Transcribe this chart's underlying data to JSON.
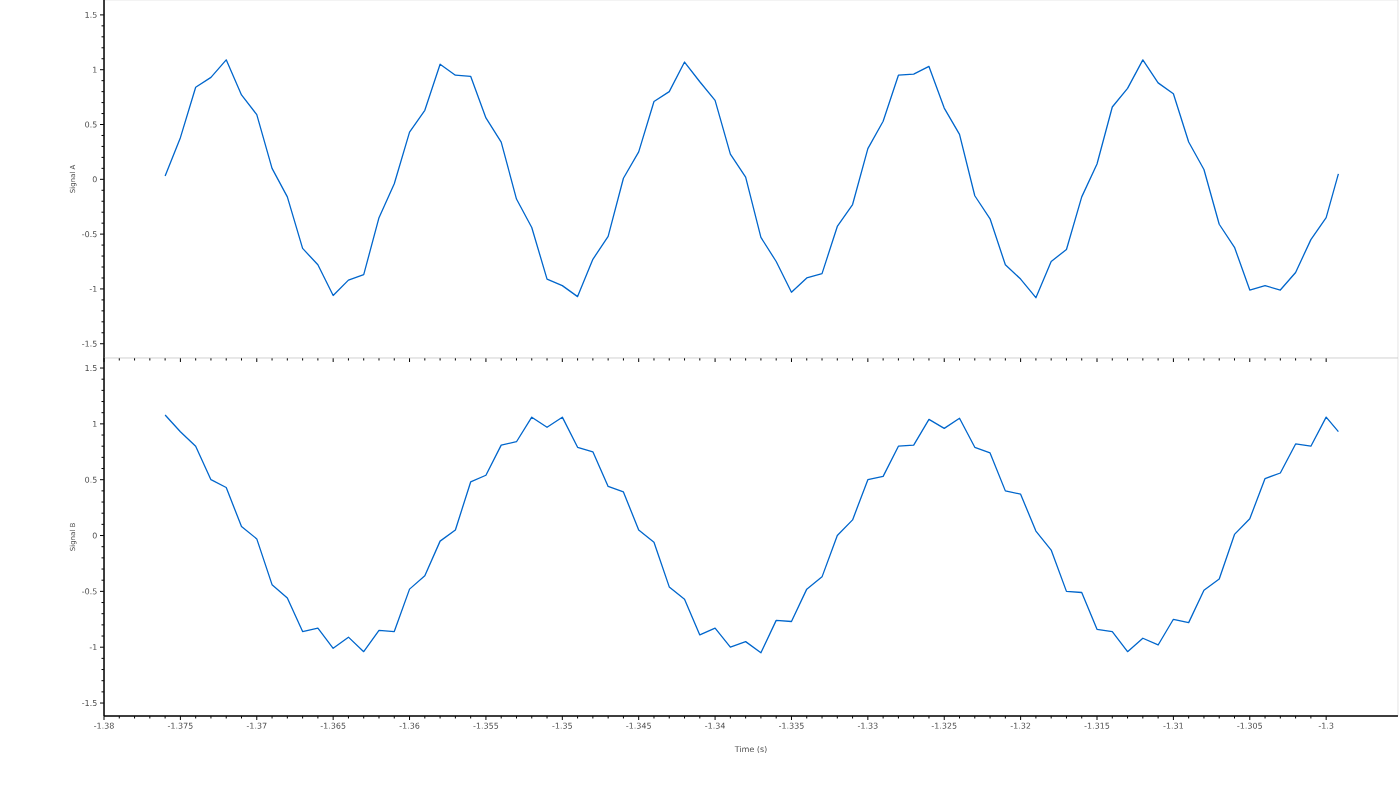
{
  "chart_data": [
    {
      "type": "line",
      "ylabel": "Signal A",
      "tick_labels": "y",
      "xlim": [
        -1.38,
        -1.2953
      ],
      "ylim": [
        -1.63,
        1.636
      ],
      "xticks": [
        -1.38,
        -1.375,
        -1.37,
        -1.365,
        -1.36,
        -1.355,
        -1.35,
        -1.345,
        -1.34,
        -1.335,
        -1.33,
        -1.325,
        -1.32,
        -1.315,
        -1.31,
        -1.305,
        -1.3
      ],
      "yticks": [
        -1.5,
        -1,
        -0.5,
        0,
        0.5,
        1,
        1.5
      ],
      "x": [
        -1.376,
        -1.375,
        -1.374,
        -1.373,
        -1.372,
        -1.371,
        -1.37,
        -1.369,
        -1.368,
        -1.367,
        -1.366,
        -1.365,
        -1.364,
        -1.363,
        -1.362,
        -1.361,
        -1.36,
        -1.359,
        -1.358,
        -1.357,
        -1.356,
        -1.355,
        -1.354,
        -1.353,
        -1.352,
        -1.351,
        -1.35,
        -1.349,
        -1.348,
        -1.347,
        -1.346,
        -1.345,
        -1.344,
        -1.343,
        -1.342,
        -1.341,
        -1.34,
        -1.339,
        -1.338,
        -1.337,
        -1.336,
        -1.335,
        -1.334,
        -1.333,
        -1.332,
        -1.331,
        -1.33,
        -1.329,
        -1.328,
        -1.327,
        -1.326,
        -1.325,
        -1.324,
        -1.323,
        -1.322,
        -1.321,
        -1.32,
        -1.319,
        -1.318,
        -1.317,
        -1.316,
        -1.315,
        -1.314,
        -1.313,
        -1.312,
        -1.311,
        -1.31,
        -1.309,
        -1.308,
        -1.307,
        -1.306,
        -1.305,
        -1.304,
        -1.303,
        -1.302,
        -1.301,
        -1.3,
        -1.2992
      ],
      "series": [
        {
          "color": "#0066cc",
          "values": [
            0.03,
            0.38,
            0.84,
            0.93,
            1.09,
            0.77,
            0.59,
            0.1,
            -0.16,
            -0.63,
            -0.78,
            -1.06,
            -0.92,
            -0.87,
            -0.35,
            -0.04,
            0.43,
            0.63,
            1.05,
            0.95,
            0.94,
            0.56,
            0.34,
            -0.18,
            -0.44,
            -0.91,
            -0.97,
            -1.07,
            -0.73,
            -0.52,
            0.01,
            0.25,
            0.71,
            0.8,
            1.07,
            0.89,
            0.72,
            0.23,
            0.02,
            -0.53,
            -0.75,
            -1.03,
            -0.9,
            -0.86,
            -0.43,
            -0.23,
            0.28,
            0.53,
            0.95,
            0.96,
            1.03,
            0.65,
            0.41,
            -0.15,
            -0.36,
            -0.78,
            -0.91,
            -1.08,
            -0.75,
            -0.64,
            -0.16,
            0.14,
            0.66,
            0.83,
            1.09,
            0.88,
            0.78,
            0.34,
            0.09,
            -0.41,
            -0.62,
            -1.01,
            -0.97,
            -1.01,
            -0.85,
            -0.55,
            -0.35,
            0.05
          ]
        }
      ]
    },
    {
      "type": "line",
      "ylabel": "Signal B",
      "xlabel": "Time (s)",
      "xlim": [
        -1.38,
        -1.2953
      ],
      "ylim": [
        -1.616,
        1.59
      ],
      "xticks": [
        -1.38,
        -1.375,
        -1.37,
        -1.365,
        -1.36,
        -1.355,
        -1.35,
        -1.345,
        -1.34,
        -1.335,
        -1.33,
        -1.325,
        -1.32,
        -1.315,
        -1.31,
        -1.305,
        -1.3
      ],
      "yticks": [
        -1.5,
        -1,
        -0.5,
        0,
        0.5,
        1,
        1.5
      ],
      "x": [
        -1.376,
        -1.375,
        -1.374,
        -1.373,
        -1.372,
        -1.371,
        -1.37,
        -1.369,
        -1.368,
        -1.367,
        -1.366,
        -1.365,
        -1.364,
        -1.363,
        -1.362,
        -1.361,
        -1.36,
        -1.359,
        -1.358,
        -1.357,
        -1.356,
        -1.355,
        -1.354,
        -1.353,
        -1.352,
        -1.351,
        -1.35,
        -1.349,
        -1.348,
        -1.347,
        -1.346,
        -1.345,
        -1.344,
        -1.343,
        -1.342,
        -1.341,
        -1.34,
        -1.339,
        -1.338,
        -1.337,
        -1.336,
        -1.335,
        -1.334,
        -1.333,
        -1.332,
        -1.331,
        -1.33,
        -1.329,
        -1.328,
        -1.327,
        -1.326,
        -1.325,
        -1.324,
        -1.323,
        -1.322,
        -1.321,
        -1.32,
        -1.319,
        -1.318,
        -1.317,
        -1.316,
        -1.315,
        -1.314,
        -1.313,
        -1.312,
        -1.311,
        -1.31,
        -1.309,
        -1.308,
        -1.307,
        -1.306,
        -1.305,
        -1.304,
        -1.303,
        -1.302,
        -1.301,
        -1.3,
        -1.2992
      ],
      "series": [
        {
          "color": "#0066cc",
          "values": [
            1.08,
            0.93,
            0.8,
            0.5,
            0.43,
            0.08,
            -0.03,
            -0.44,
            -0.56,
            -0.86,
            -0.83,
            -1.01,
            -0.91,
            -1.04,
            -0.85,
            -0.86,
            -0.48,
            -0.36,
            -0.05,
            0.05,
            0.48,
            0.54,
            0.81,
            0.84,
            1.06,
            0.97,
            1.06,
            0.79,
            0.75,
            0.44,
            0.39,
            0.05,
            -0.06,
            -0.46,
            -0.57,
            -0.89,
            -0.83,
            -1.0,
            -0.95,
            -1.05,
            -0.76,
            -0.77,
            -0.48,
            -0.37,
            0.0,
            0.14,
            0.5,
            0.53,
            0.8,
            0.81,
            1.04,
            0.96,
            1.05,
            0.79,
            0.74,
            0.4,
            0.37,
            0.04,
            -0.13,
            -0.5,
            -0.51,
            -0.84,
            -0.86,
            -1.04,
            -0.92,
            -0.98,
            -0.75,
            -0.78,
            -0.49,
            -0.39,
            0.01,
            0.15,
            0.51,
            0.56,
            0.82,
            0.8,
            1.06,
            0.93
          ]
        }
      ]
    }
  ]
}
